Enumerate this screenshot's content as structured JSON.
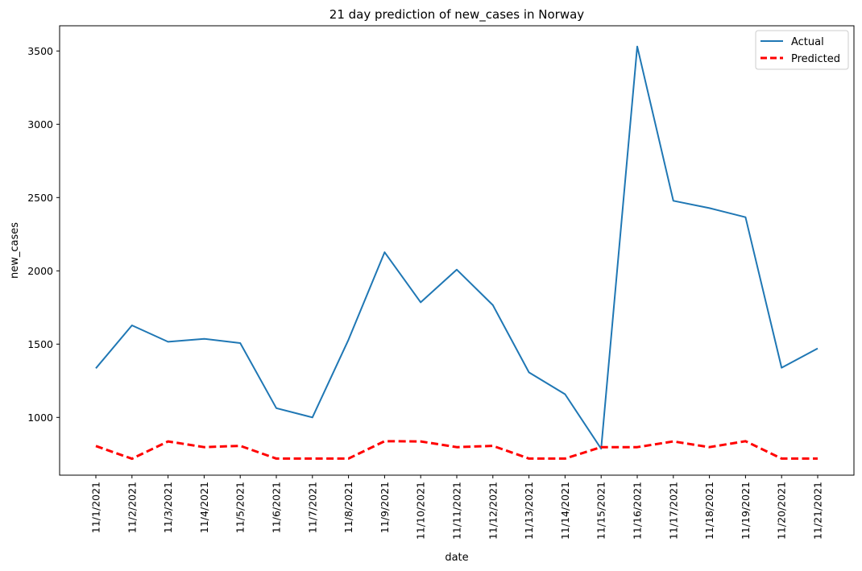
{
  "chart_data": {
    "type": "line",
    "title": "21 day prediction of new_cases in Norway",
    "xlabel": "date",
    "ylabel": "new_cases",
    "categories": [
      "11/1/2021",
      "11/2/2021",
      "11/3/2021",
      "11/4/2021",
      "11/5/2021",
      "11/6/2021",
      "11/7/2021",
      "11/8/2021",
      "11/9/2021",
      "11/10/2021",
      "11/11/2021",
      "11/12/2021",
      "11/13/2021",
      "11/14/2021",
      "11/15/2021",
      "11/16/2021",
      "11/17/2021",
      "11/18/2021",
      "11/19/2021",
      "11/20/2021",
      "11/21/2021"
    ],
    "yticks": [
      1000,
      1500,
      2000,
      2500,
      3000,
      3500
    ],
    "ylim": [
      606,
      3672
    ],
    "grid": false,
    "legend_position": "top-right",
    "series": [
      {
        "name": "Actual",
        "color": "#1f77b4",
        "style": "solid",
        "values": [
          1335,
          1628,
          1516,
          1536,
          1507,
          1063,
          1000,
          1530,
          2127,
          1785,
          2008,
          1766,
          1307,
          1158,
          786,
          3531,
          2478,
          2428,
          2366,
          1339,
          1471
        ]
      },
      {
        "name": "Predicted",
        "color": "#ff0000",
        "style": "dashed",
        "values": [
          805,
          718,
          836,
          797,
          806,
          719,
          719,
          719,
          838,
          836,
          797,
          806,
          719,
          719,
          797,
          797,
          836,
          797,
          838,
          719,
          719
        ]
      }
    ]
  }
}
